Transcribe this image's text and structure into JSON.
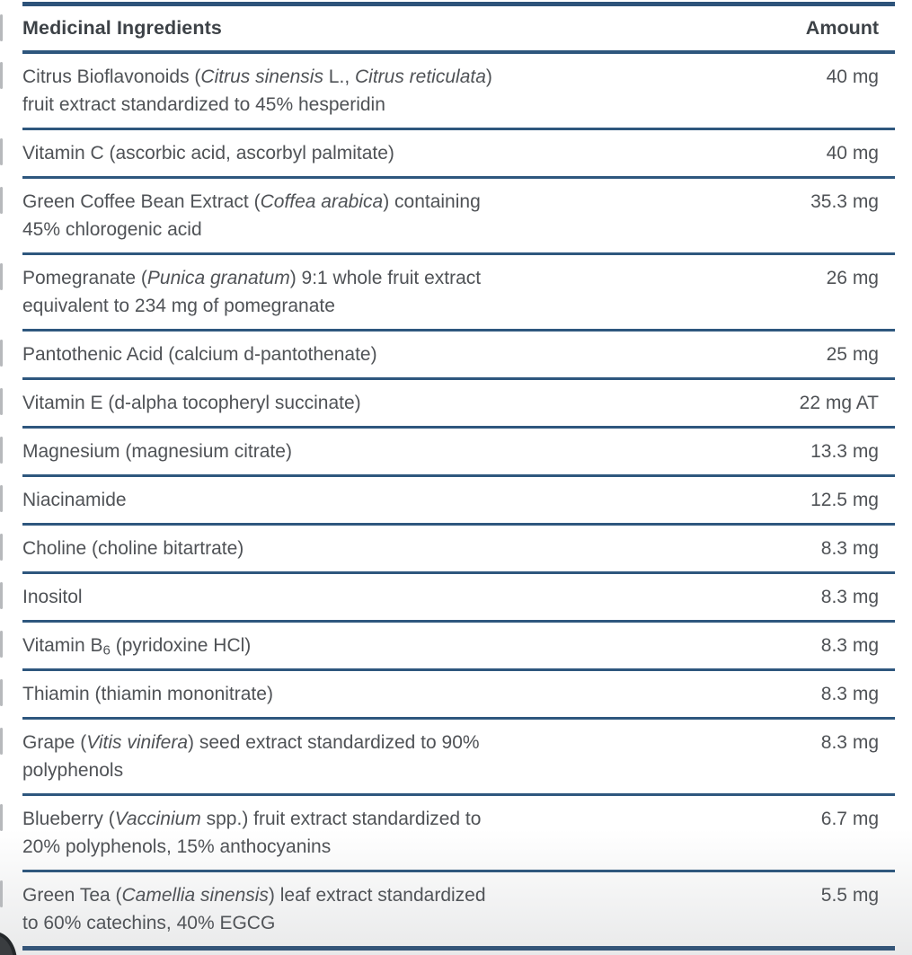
{
  "panel": {
    "header": {
      "ingredients_label": "Medicinal Ingredients",
      "amount_label": "Amount"
    },
    "colors": {
      "rule_blue": "#2e567d",
      "body_text": "#4f5256",
      "header_text": "#3d4247"
    },
    "rows": [
      {
        "amount": "40 mg",
        "name": [
          {
            "t": "Citrus Bioflavonoids ("
          },
          {
            "t": "Citrus sinensis",
            "i": true
          },
          {
            "t": " L., "
          },
          {
            "t": "Citrus reticulata",
            "i": true
          },
          {
            "t": ")"
          },
          {
            "br": true
          },
          {
            "t": "fruit extract standardized to 45% hesperidin"
          }
        ]
      },
      {
        "amount": "40 mg",
        "name": [
          {
            "t": "Vitamin C (ascorbic acid, ascorbyl palmitate)"
          }
        ]
      },
      {
        "amount": "35.3 mg",
        "name": [
          {
            "t": "Green Coffee Bean Extract ("
          },
          {
            "t": "Coffea arabica",
            "i": true
          },
          {
            "t": ") containing"
          },
          {
            "br": true
          },
          {
            "t": "45% chlorogenic acid"
          }
        ]
      },
      {
        "amount": "26 mg",
        "name": [
          {
            "t": "Pomegranate ("
          },
          {
            "t": "Punica granatum",
            "i": true
          },
          {
            "t": ") 9:1 whole fruit extract"
          },
          {
            "br": true
          },
          {
            "t": "equivalent to 234 mg of pomegranate"
          }
        ]
      },
      {
        "amount": "25 mg",
        "name": [
          {
            "t": "Pantothenic Acid (calcium d-pantothenate)"
          }
        ]
      },
      {
        "amount": "22 mg AT",
        "name": [
          {
            "t": "Vitamin E (d-alpha tocopheryl succinate)"
          }
        ]
      },
      {
        "amount": "13.3 mg",
        "name": [
          {
            "t": "Magnesium (magnesium citrate)"
          }
        ]
      },
      {
        "amount": "12.5 mg",
        "name": [
          {
            "t": "Niacinamide"
          }
        ]
      },
      {
        "amount": "8.3 mg",
        "name": [
          {
            "t": "Choline (choline bitartrate)"
          }
        ]
      },
      {
        "amount": "8.3 mg",
        "name": [
          {
            "t": "Inositol"
          }
        ]
      },
      {
        "amount": "8.3 mg",
        "name": [
          {
            "t": "Vitamin B"
          },
          {
            "t": "6",
            "sub": true
          },
          {
            "t": " (pyridoxine HCl)"
          }
        ]
      },
      {
        "amount": "8.3 mg",
        "name": [
          {
            "t": "Thiamin (thiamin mononitrate)"
          }
        ]
      },
      {
        "amount": "8.3 mg",
        "name": [
          {
            "t": "Grape ("
          },
          {
            "t": "Vitis vinifera",
            "i": true
          },
          {
            "t": ") seed extract standardized to 90%"
          },
          {
            "br": true
          },
          {
            "t": "polyphenols"
          }
        ]
      },
      {
        "amount": "6.7 mg",
        "name": [
          {
            "t": "Blueberry ("
          },
          {
            "t": "Vaccinium",
            "i": true
          },
          {
            "t": " spp.) fruit extract standardized to"
          },
          {
            "br": true
          },
          {
            "t": "20% polyphenols, 15% anthocyanins"
          }
        ]
      },
      {
        "amount": "5.5 mg",
        "name": [
          {
            "t": "Green Tea ("
          },
          {
            "t": "Camellia sinensis",
            "i": true
          },
          {
            "t": ") leaf extract standardized"
          },
          {
            "br": true
          },
          {
            "t": "to 60% catechins, 40% EGCG"
          }
        ]
      }
    ]
  }
}
